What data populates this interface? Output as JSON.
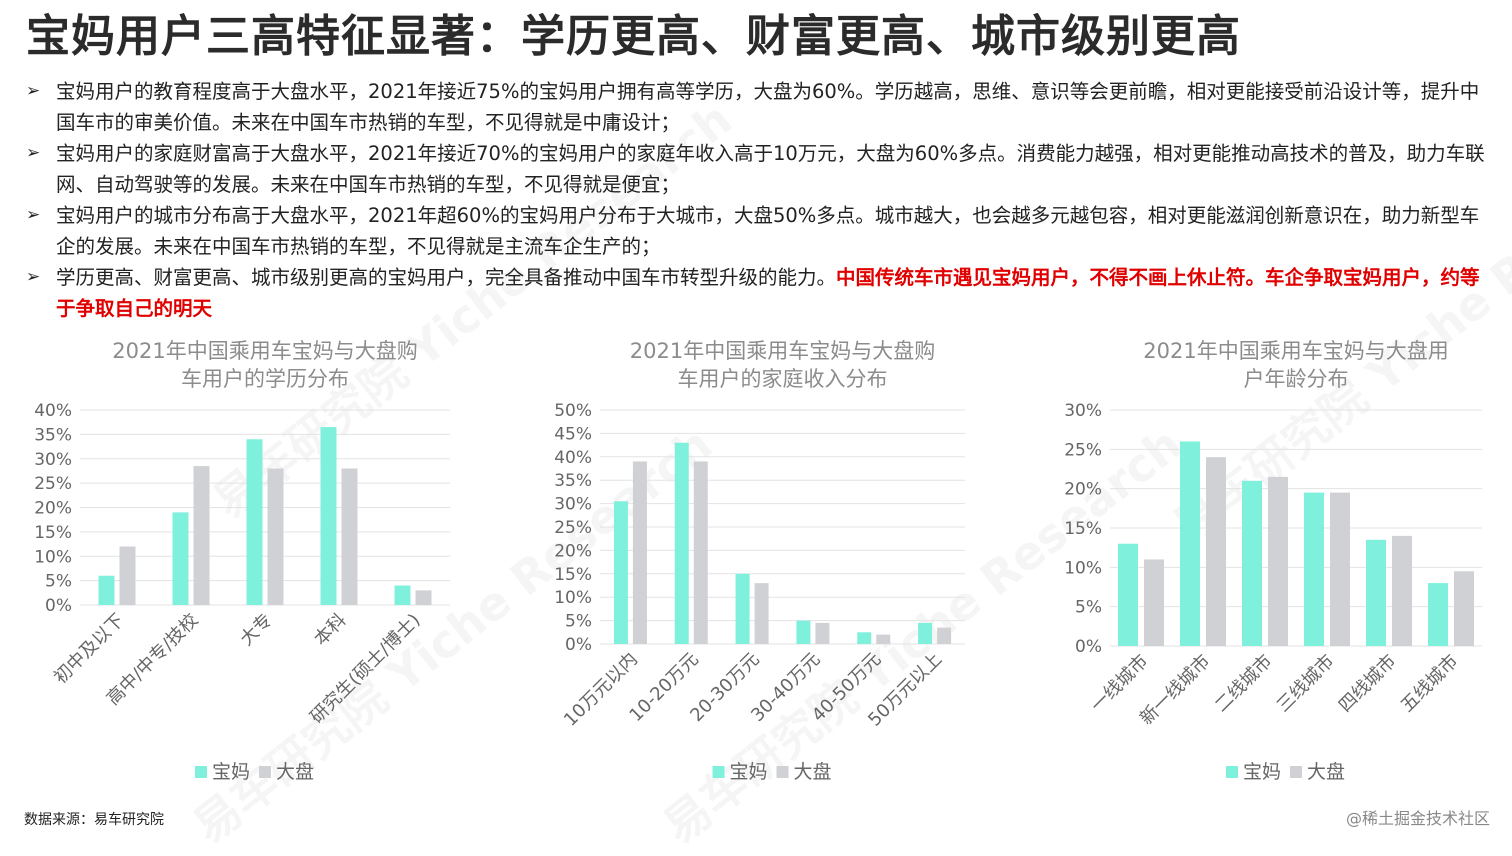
{
  "title": "宝妈用户三高特征显著：学历更高、财富更高、城市级别更高",
  "bullets": [
    {
      "text": "宝妈用户的教育程度高于大盘水平，2021年接近75%的宝妈用户拥有高等学历，大盘为60%。学历越高，思维、意识等会更前瞻，相对更能接受前沿设计等，提升中国车市的审美价值。未来在中国车市热销的车型，不见得就是中庸设计；",
      "highlight": ""
    },
    {
      "text": "宝妈用户的家庭财富高于大盘水平，2021年接近70%的宝妈用户的家庭年收入高于10万元，大盘为60%多点。消费能力越强，相对更能推动高技术的普及，助力车联网、自动驾驶等的发展。未来在中国车市热销的车型，不见得就是便宜；",
      "highlight": ""
    },
    {
      "text": "宝妈用户的城市分布高于大盘水平，2021年超60%的宝妈用户分布于大城市，大盘50%多点。城市越大，也会越多元越包容，相对更能滋润创新意识在，助力新型车企的发展。未来在中国车市热销的车型，不见得就是主流车企生产的；",
      "highlight": ""
    },
    {
      "text": "学历更高、财富更高、城市级别更高的宝妈用户，完全具备推动中国车市转型升级的能力。",
      "highlight": "中国传统车市遇见宝妈用户，不得不画上休止符。车企争取宝妈用户，约等于争取自己的明天"
    }
  ],
  "bullet_marker": "➢",
  "colors": {
    "baoma": "#7ef0dc",
    "dapan": "#cfd1d4",
    "title_text": "#8c8c8c",
    "grid": "#e3e3e3",
    "highlight": "#e00000"
  },
  "chart_data": [
    {
      "type": "bar",
      "title": [
        "2021年中国乘用车宝妈与大盘购",
        "车用户的学历分布"
      ],
      "categories": [
        "初中及以下",
        "高中/中专/技校",
        "大专",
        "本科",
        "研究生(硕士/博士)"
      ],
      "series": [
        {
          "name": "宝妈",
          "values": [
            6,
            19,
            34,
            36.5,
            4
          ]
        },
        {
          "name": "大盘",
          "values": [
            12,
            28.5,
            28,
            28,
            3
          ]
        }
      ],
      "yticks": [
        "0%",
        "5%",
        "10%",
        "15%",
        "20%",
        "25%",
        "30%",
        "35%",
        "40%"
      ],
      "ylim": [
        0,
        40
      ],
      "grid": true,
      "legend": "bottom"
    },
    {
      "type": "bar",
      "title": [
        "2021年中国乘用车宝妈与大盘购",
        "车用户的家庭收入分布"
      ],
      "categories": [
        "10万元以内",
        "10-20万元",
        "20-30万元",
        "30-40万元",
        "40-50万元",
        "50万元以上"
      ],
      "series": [
        {
          "name": "宝妈",
          "values": [
            30.5,
            43,
            15,
            5,
            2.5,
            4.5
          ]
        },
        {
          "name": "大盘",
          "values": [
            39,
            39,
            13,
            4.5,
            2,
            3.5
          ]
        }
      ],
      "yticks": [
        "0%",
        "5%",
        "10%",
        "15%",
        "20%",
        "25%",
        "30%",
        "35%",
        "40%",
        "45%",
        "50%"
      ],
      "ylim": [
        0,
        50
      ],
      "grid": true,
      "legend": "bottom"
    },
    {
      "type": "bar",
      "title": [
        "2021年中国乘用车宝妈与大盘用",
        "户年龄分布"
      ],
      "categories": [
        "一线城市",
        "新一线城市",
        "二线城市",
        "三线城市",
        "四线城市",
        "五线城市"
      ],
      "series": [
        {
          "name": "宝妈",
          "values": [
            13,
            26,
            21,
            19.5,
            13.5,
            8
          ]
        },
        {
          "name": "大盘",
          "values": [
            11,
            24,
            21.5,
            19.5,
            14,
            9.5
          ]
        }
      ],
      "yticks": [
        "0%",
        "5%",
        "10%",
        "15%",
        "20%",
        "25%",
        "30%"
      ],
      "ylim": [
        0,
        30
      ],
      "grid": true,
      "legend": "bottom"
    }
  ],
  "footer": {
    "source": "数据来源：易车研究院",
    "credit": "@稀土掘金技术社区"
  },
  "watermark": {
    "cn": "易车研究院",
    "en": "Yiche Research"
  }
}
